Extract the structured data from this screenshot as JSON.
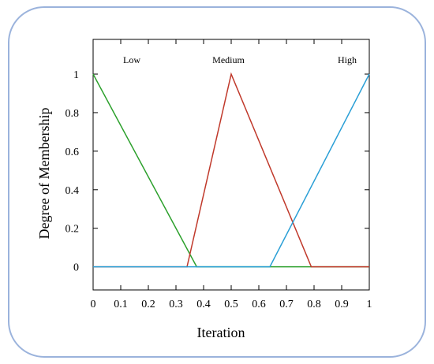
{
  "chart_data": {
    "type": "line",
    "xlabel": "Iteration",
    "ylabel": "Degree of Membership",
    "xlim": [
      0,
      1
    ],
    "ylim": [
      -0.12,
      1.18
    ],
    "xticks": [
      "0",
      "0.1",
      "0.2",
      "0.3",
      "0.4",
      "0.5",
      "0.6",
      "0.7",
      "0.8",
      "0.9",
      "1"
    ],
    "yticks": [
      "0",
      "0.2",
      "0.4",
      "0.6",
      "0.8",
      "1"
    ],
    "grid": false,
    "series": [
      {
        "name": "Low",
        "color": "#2ca02c",
        "x": [
          0,
          0.375,
          1.0
        ],
        "y": [
          1,
          0,
          0
        ]
      },
      {
        "name": "Medium",
        "color": "#c0392b",
        "x": [
          0,
          0.34,
          0.5,
          0.79,
          1.0
        ],
        "y": [
          0,
          0,
          1,
          0,
          0
        ]
      },
      {
        "name": "High",
        "color": "#2a9fd6",
        "x": [
          0,
          0.64,
          1.0
        ],
        "y": [
          0,
          0,
          1
        ]
      }
    ]
  }
}
